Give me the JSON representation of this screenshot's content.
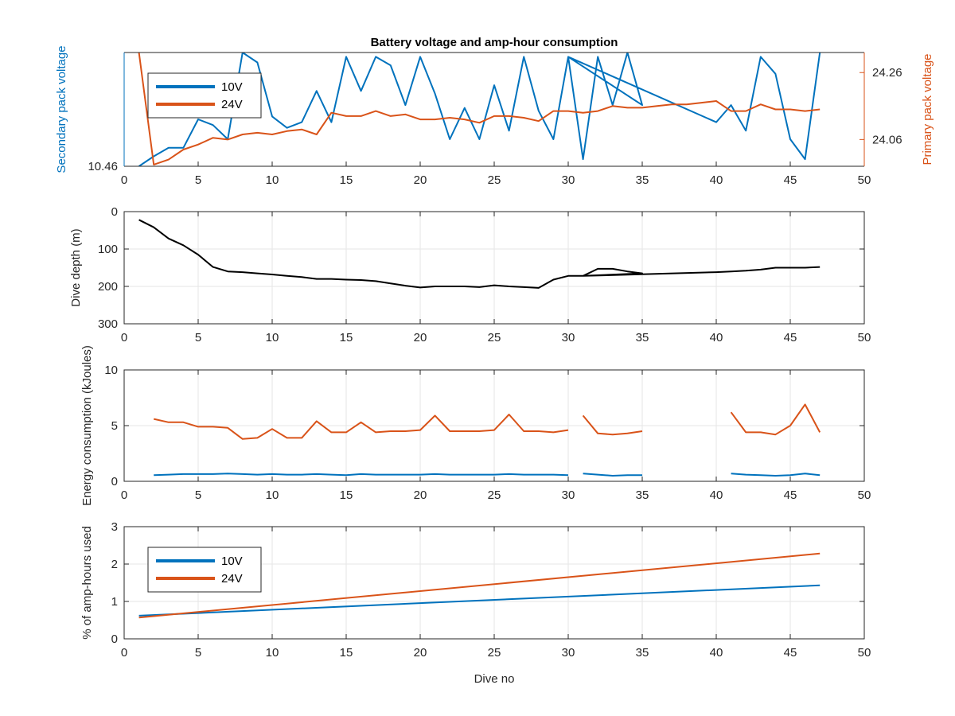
{
  "figure_title": "Battery voltage and amp-hour consumption",
  "colors": {
    "blue": "#0072BD",
    "orange": "#D95319",
    "black": "#000000",
    "grid": "#e6e6e6",
    "axis": "#262626"
  },
  "chart_data": [
    {
      "type": "line",
      "title": "Battery voltage and amp-hour consumption",
      "xlabel": "",
      "xlim": [
        0,
        50
      ],
      "xticks": [
        "0",
        "5",
        "10",
        "15",
        "20",
        "25",
        "30",
        "35",
        "40",
        "45",
        "50"
      ],
      "ylabel": "Secondary pack voltage",
      "ylim": [
        10.46,
        10.5
      ],
      "yticks": [
        "10.46"
      ],
      "y2label": "Primary pack voltage",
      "y2lim": [
        23.98,
        24.32
      ],
      "y2ticks": [
        "24.06",
        "24.26"
      ],
      "legend": {
        "position": "top-left",
        "entries": [
          "10V",
          "24V"
        ]
      },
      "series": [
        {
          "name": "10V",
          "axis": "left",
          "x": [
            1,
            2,
            3,
            4,
            5,
            6,
            7,
            8,
            9,
            10,
            11,
            12,
            13,
            14,
            15,
            16,
            17,
            18,
            19,
            20,
            21,
            22,
            23,
            24,
            25,
            26,
            27,
            28,
            29,
            30,
            31,
            32,
            33,
            34,
            35,
            30,
            40,
            41,
            42,
            43,
            44,
            45,
            46,
            47
          ],
          "y": [
            10.46,
            10.4635,
            10.4665,
            10.4665,
            10.4765,
            10.4745,
            10.4695,
            10.5,
            10.4965,
            10.4775,
            10.4735,
            10.4755,
            10.4865,
            10.4755,
            10.4985,
            10.4865,
            10.4985,
            10.4955,
            10.4815,
            10.4985,
            10.4855,
            10.4695,
            10.4805,
            10.4695,
            10.4885,
            10.4725,
            10.4985,
            10.4795,
            10.4695,
            10.4985,
            10.4625,
            10.4985,
            10.4815,
            10.5,
            10.4815,
            10.4985,
            10.4755,
            10.4815,
            10.4725,
            10.4985,
            10.4925,
            10.4695,
            10.4625,
            10.5
          ]
        },
        {
          "name": "24V",
          "axis": "right",
          "x": [
            1,
            2,
            3,
            4,
            5,
            6,
            7,
            8,
            9,
            10,
            11,
            12,
            13,
            14,
            15,
            16,
            17,
            18,
            19,
            20,
            21,
            22,
            23,
            24,
            25,
            26,
            27,
            28,
            29,
            30,
            31,
            32,
            33,
            34,
            35,
            36,
            37,
            38,
            39,
            40,
            41,
            42,
            43,
            44,
            45,
            46,
            47
          ],
          "y": [
            24.32,
            23.985,
            24.0,
            24.03,
            24.045,
            24.065,
            24.06,
            24.075,
            24.08,
            24.075,
            24.085,
            24.09,
            24.075,
            24.14,
            24.13,
            24.13,
            24.145,
            24.13,
            24.135,
            24.12,
            24.12,
            24.125,
            24.12,
            24.11,
            24.13,
            24.13,
            24.125,
            24.115,
            24.145,
            24.145,
            24.14,
            24.145,
            24.16,
            24.155,
            24.155,
            24.16,
            24.165,
            24.165,
            24.17,
            24.175,
            24.145,
            24.145,
            24.165,
            24.15,
            24.15,
            24.145,
            24.15
          ]
        }
      ]
    },
    {
      "type": "line",
      "xlabel": "",
      "xlim": [
        0,
        50
      ],
      "xticks": [
        "0",
        "5",
        "10",
        "15",
        "20",
        "25",
        "30",
        "35",
        "40",
        "45",
        "50"
      ],
      "ylabel": "Dive depth (m)",
      "ylim": [
        0,
        300
      ],
      "y_reversed": true,
      "yticks": [
        "0",
        "100",
        "200",
        "300"
      ],
      "series": [
        {
          "axis": "left",
          "x": [
            1,
            2,
            3,
            4,
            5,
            6,
            7,
            8,
            9,
            10,
            11,
            12,
            13,
            14,
            15,
            16,
            17,
            18,
            19,
            20,
            21,
            22,
            23,
            24,
            25,
            26,
            27,
            28,
            29,
            30,
            31,
            32,
            33,
            34,
            35,
            31,
            40,
            41,
            42,
            43,
            44,
            45,
            46,
            47
          ],
          "y": [
            22,
            42,
            72,
            90,
            115,
            148,
            160,
            162,
            165,
            168,
            172,
            175,
            180,
            180,
            182,
            183,
            186,
            192,
            198,
            203,
            200,
            200,
            200,
            202,
            197,
            200,
            202,
            204,
            182,
            172,
            172,
            153,
            153,
            160,
            165,
            172,
            162,
            160,
            158,
            155,
            150,
            150,
            150,
            148
          ]
        }
      ]
    },
    {
      "type": "line",
      "xlabel": "",
      "xlim": [
        0,
        50
      ],
      "xticks": [
        "0",
        "5",
        "10",
        "15",
        "20",
        "25",
        "30",
        "35",
        "40",
        "45",
        "50"
      ],
      "ylabel": "Energy consumption (kJoules)",
      "ylim": [
        0,
        10
      ],
      "yticks": [
        "0",
        "5",
        "10"
      ],
      "series": [
        {
          "color": "blue",
          "segments": [
            {
              "x": [
                2,
                3,
                4,
                5,
                6,
                7,
                8,
                9,
                10,
                11,
                12,
                13,
                14,
                15,
                16,
                17,
                18,
                19,
                20,
                21,
                22,
                23,
                24,
                25,
                26,
                27,
                28,
                29,
                30
              ],
              "y": [
                0.55,
                0.6,
                0.65,
                0.65,
                0.65,
                0.7,
                0.65,
                0.6,
                0.65,
                0.6,
                0.6,
                0.65,
                0.6,
                0.55,
                0.65,
                0.6,
                0.6,
                0.6,
                0.6,
                0.65,
                0.6,
                0.6,
                0.6,
                0.6,
                0.65,
                0.6,
                0.6,
                0.6,
                0.55
              ]
            },
            {
              "x": [
                31,
                32,
                33,
                34,
                35
              ],
              "y": [
                0.7,
                0.6,
                0.5,
                0.55,
                0.55
              ]
            },
            {
              "x": [
                41,
                42,
                43,
                44,
                45,
                46,
                47
              ],
              "y": [
                0.7,
                0.6,
                0.55,
                0.5,
                0.55,
                0.7,
                0.55
              ]
            }
          ]
        },
        {
          "color": "orange",
          "segments": [
            {
              "x": [
                2,
                3,
                4,
                5,
                6,
                7,
                8,
                9,
                10,
                11,
                12,
                13,
                14,
                15,
                16,
                17,
                18,
                19,
                20,
                21,
                22,
                23,
                24,
                25,
                26,
                27,
                28,
                29,
                30
              ],
              "y": [
                5.6,
                5.3,
                5.3,
                4.9,
                4.9,
                4.8,
                3.8,
                3.9,
                4.7,
                3.9,
                3.9,
                5.4,
                4.4,
                4.4,
                5.3,
                4.4,
                4.5,
                4.5,
                4.6,
                5.9,
                4.5,
                4.5,
                4.5,
                4.6,
                6.0,
                4.5,
                4.5,
                4.4,
                4.6
              ]
            },
            {
              "x": [
                31,
                32,
                33,
                34,
                35
              ],
              "y": [
                5.9,
                4.3,
                4.2,
                4.3,
                4.5
              ]
            },
            {
              "x": [
                41,
                42,
                43,
                44,
                45,
                46,
                47
              ],
              "y": [
                6.2,
                4.4,
                4.4,
                4.2,
                5.0,
                6.9,
                4.4
              ]
            }
          ]
        }
      ]
    },
    {
      "type": "line",
      "xlabel": "Dive no",
      "xlim": [
        0,
        50
      ],
      "xticks": [
        "0",
        "5",
        "10",
        "15",
        "20",
        "25",
        "30",
        "35",
        "40",
        "45",
        "50"
      ],
      "ylabel": "% of amp-hours used",
      "ylim": [
        0,
        3
      ],
      "yticks": [
        "0",
        "1",
        "2",
        "3"
      ],
      "legend": {
        "position": "top-left",
        "entries": [
          "10V",
          "24V"
        ]
      },
      "series": [
        {
          "name": "10V",
          "color": "blue",
          "x": [
            1,
            47
          ],
          "y": [
            0.62,
            1.43
          ]
        },
        {
          "name": "24V",
          "color": "orange",
          "x": [
            1,
            47
          ],
          "y": [
            0.57,
            2.28
          ]
        }
      ]
    }
  ]
}
